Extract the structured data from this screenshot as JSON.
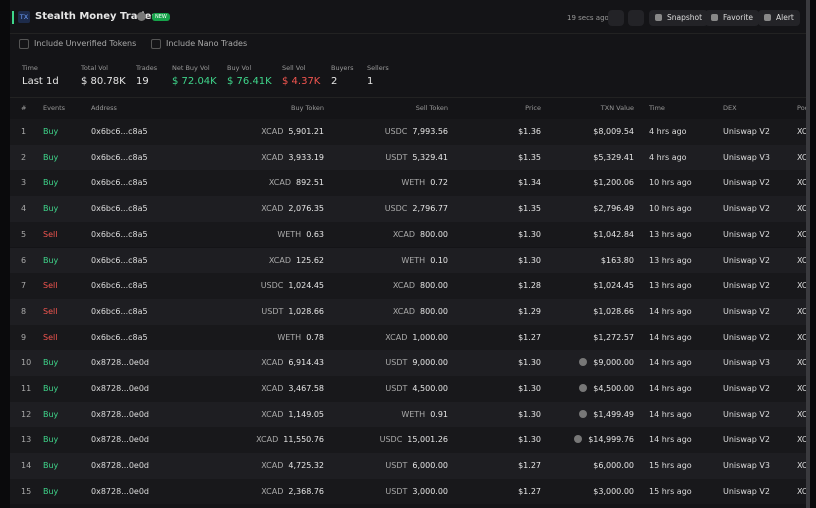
{
  "header": {
    "badge_icon": "TX",
    "title": "Stealth Money Trades",
    "new_badge": "NEW",
    "updated": "19 secs ago",
    "buttons": [
      "Snapshot",
      "Favorite",
      "Alert"
    ]
  },
  "filters": [
    "Include Unverified Tokens",
    "Include Nano Trades"
  ],
  "stats": [
    {
      "label": "Time",
      "value": "Last 1d",
      "color": "#e6e6e6"
    },
    {
      "label": "Total Vol",
      "value": "$ 80.78K",
      "color": "#e6e6e6"
    },
    {
      "label": "Trades",
      "value": "19",
      "color": "#e6e6e6"
    },
    {
      "label": "Net Buy Vol",
      "value": "$ 72.04K",
      "color": "#3fd68b"
    },
    {
      "label": "Buy Vol",
      "value": "$ 76.41K",
      "color": "#3fd68b"
    },
    {
      "label": "Sell Vol",
      "value": "$ 4.37K",
      "color": "#f2554f"
    },
    {
      "label": "Buyers",
      "value": "2",
      "color": "#e6e6e6"
    },
    {
      "label": "Sellers",
      "value": "1",
      "color": "#e6e6e6"
    }
  ],
  "table": {
    "columns": [
      "#",
      "Events",
      "Address",
      "Buy Token",
      "Sell Token",
      "Price",
      "TXN Value",
      "Time",
      "DEX",
      "Poo"
    ],
    "rows": [
      [
        "1",
        "Buy",
        "0x6bc6...c8a5",
        "XCAD",
        "5,901.21",
        "USDC",
        "7,993.56",
        "$1.36",
        "$8,009.54",
        "4 hrs ago",
        "Uniswap V2",
        "XC"
      ],
      [
        "2",
        "Buy",
        "0x6bc6...c8a5",
        "XCAD",
        "3,933.19",
        "USDT",
        "5,329.41",
        "$1.35",
        "$5,329.41",
        "4 hrs ago",
        "Uniswap V3",
        "XC"
      ],
      [
        "3",
        "Buy",
        "0x6bc6...c8a5",
        "XCAD",
        "892.51",
        "WETH",
        "0.72",
        "$1.34",
        "$1,200.06",
        "10 hrs ago",
        "Uniswap V2",
        "XC"
      ],
      [
        "4",
        "Buy",
        "0x6bc6...c8a5",
        "XCAD",
        "2,076.35",
        "USDC",
        "2,796.77",
        "$1.35",
        "$2,796.49",
        "10 hrs ago",
        "Uniswap V2",
        "XC"
      ],
      [
        "5",
        "Sell",
        "0x6bc6...c8a5",
        "WETH",
        "0.63",
        "XCAD",
        "800.00",
        "$1.30",
        "$1,042.84",
        "13 hrs ago",
        "Uniswap V2",
        "XC"
      ],
      [
        "6",
        "Buy",
        "0x6bc6...c8a5",
        "XCAD",
        "125.62",
        "WETH",
        "0.10",
        "$1.30",
        "$163.80",
        "13 hrs ago",
        "Uniswap V2",
        "XC"
      ],
      [
        "7",
        "Sell",
        "0x6bc6...c8a5",
        "USDC",
        "1,024.45",
        "XCAD",
        "800.00",
        "$1.28",
        "$1,024.45",
        "13 hrs ago",
        "Uniswap V2",
        "XC"
      ],
      [
        "8",
        "Sell",
        "0x6bc6...c8a5",
        "USDT",
        "1,028.66",
        "XCAD",
        "800.00",
        "$1.29",
        "$1,028.66",
        "14 hrs ago",
        "Uniswap V2",
        "XC"
      ],
      [
        "9",
        "Sell",
        "0x6bc6...c8a5",
        "WETH",
        "0.78",
        "XCAD",
        "1,000.00",
        "$1.27",
        "$1,272.57",
        "14 hrs ago",
        "Uniswap V2",
        "XC"
      ],
      [
        "10",
        "Buy",
        "0x8728...0e0d",
        "XCAD",
        "6,914.43",
        "USDT",
        "9,000.00",
        "$1.30",
        "$9,000.00",
        "14 hrs ago",
        "Uniswap V3",
        "XC"
      ],
      [
        "11",
        "Buy",
        "0x8728...0e0d",
        "XCAD",
        "3,467.58",
        "USDT",
        "4,500.00",
        "$1.30",
        "$4,500.00",
        "14 hrs ago",
        "Uniswap V2",
        "XC"
      ],
      [
        "12",
        "Buy",
        "0x8728...0e0d",
        "XCAD",
        "1,149.05",
        "WETH",
        "0.91",
        "$1.30",
        "$1,499.49",
        "14 hrs ago",
        "Uniswap V2",
        "XC"
      ],
      [
        "13",
        "Buy",
        "0x8728...0e0d",
        "XCAD",
        "11,550.76",
        "USDC",
        "15,001.26",
        "$1.30",
        "$14,999.76",
        "14 hrs ago",
        "Uniswap V2",
        "XC"
      ],
      [
        "14",
        "Buy",
        "0x8728...0e0d",
        "XCAD",
        "4,725.32",
        "USDT",
        "6,000.00",
        "$1.27",
        "$6,000.00",
        "15 hrs ago",
        "Uniswap V3",
        "XC"
      ],
      [
        "15",
        "Buy",
        "0x8728...0e0d",
        "XCAD",
        "2,368.76",
        "USDT",
        "3,000.00",
        "$1.27",
        "$3,000.00",
        "15 hrs ago",
        "Uniswap V2",
        "XC"
      ]
    ],
    "info_icon": [
      false,
      false,
      false,
      false,
      false,
      false,
      false,
      false,
      false,
      true,
      true,
      true,
      true,
      false,
      false
    ]
  }
}
